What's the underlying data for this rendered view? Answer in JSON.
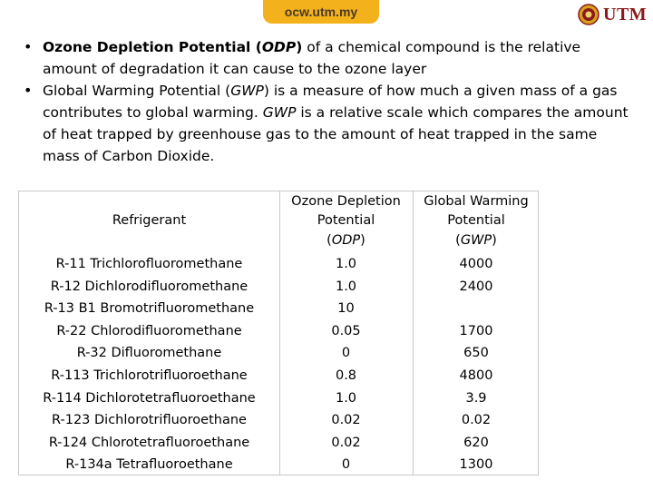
{
  "header": {
    "site": "ocw.utm.my",
    "logo_text": "UTM",
    "logo_icon": "university-crest-icon",
    "accent_color": "#f3b21b",
    "logo_color": "#8b1a1a"
  },
  "bullets": [
    {
      "parts": [
        {
          "text": "Ozone Depletion Potential (",
          "style": "bold"
        },
        {
          "text": "ODP",
          "style": "bold-italic"
        },
        {
          "text": ")",
          "style": "bold"
        },
        {
          "text": " of a chemical compound is the relative amount of degradation  it can cause to the ozone layer",
          "style": "normal"
        }
      ]
    },
    {
      "parts": [
        {
          "text": "Global Warming Potential (",
          "style": "normal"
        },
        {
          "text": "GWP",
          "style": "italic"
        },
        {
          "text": ") is a measure of how much a given mass of a gas contributes to global warming. ",
          "style": "normal"
        },
        {
          "text": "GWP",
          "style": "italic"
        },
        {
          "text": " is a relative scale which compares the amount of heat trapped by greenhouse gas to the amount of heat trapped in the same mass of Carbon Dioxide.",
          "style": "normal"
        }
      ]
    }
  ],
  "table": {
    "headers": {
      "refrigerant": "Refrigerant",
      "odp_line1": "Ozone Depletion",
      "odp_line2": "Potential",
      "odp_abbr": "(ODP)",
      "gwp_line1": "Global Warming",
      "gwp_line2": "Potential",
      "gwp_abbr": "(GWP)"
    },
    "rows": [
      {
        "refrigerant": "R-11 Trichlorofluoromethane",
        "odp": "1.0",
        "gwp": "4000"
      },
      {
        "refrigerant": "R-12 Dichlorodifluoromethane",
        "odp": "1.0",
        "gwp": "2400"
      },
      {
        "refrigerant": "R-13 B1 Bromotrifluoromethane",
        "odp": "10",
        "gwp": ""
      },
      {
        "refrigerant": "R-22 Chlorodifluoromethane",
        "odp": "0.05",
        "gwp": "1700"
      },
      {
        "refrigerant": "R-32 Difluoromethane",
        "odp": "0",
        "gwp": "650"
      },
      {
        "refrigerant": "R-113 Trichlorotrifluoroethane",
        "odp": "0.8",
        "gwp": "4800"
      },
      {
        "refrigerant": "R-114 Dichlorotetrafluoroethane",
        "odp": "1.0",
        "gwp": "3.9"
      },
      {
        "refrigerant": "R-123 Dichlorotrifluoroethane",
        "odp": "0.02",
        "gwp": "0.02"
      },
      {
        "refrigerant": "R-124 Chlorotetrafluoroethane",
        "odp": "0.02",
        "gwp": "620"
      },
      {
        "refrigerant": "R-134a Tetrafluoroethane",
        "odp": "0",
        "gwp": "1300"
      }
    ]
  }
}
